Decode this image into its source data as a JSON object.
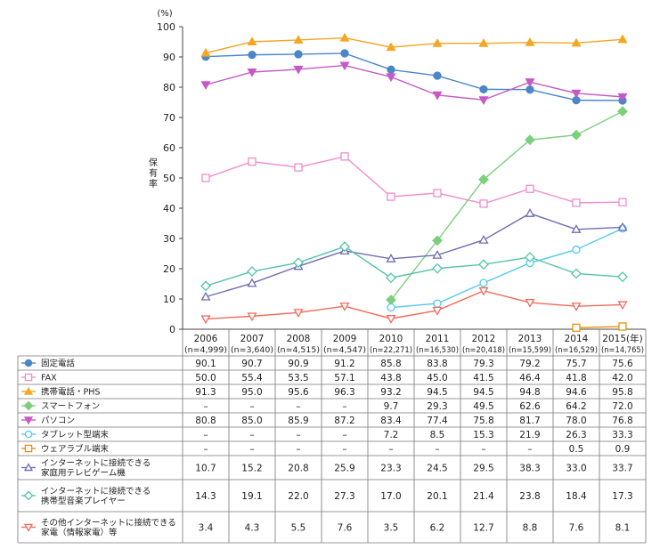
{
  "chart_data": {
    "type": "line",
    "unit_label": "(%)",
    "ylabel": "保有率",
    "ylim": [
      0,
      100
    ],
    "yticks": [
      0,
      10,
      20,
      30,
      40,
      50,
      60,
      70,
      80,
      90,
      100
    ],
    "grid": false,
    "years": [
      "2006",
      "2007",
      "2008",
      "2009",
      "2010",
      "2011",
      "2012",
      "2013",
      "2014",
      "2015(年)"
    ],
    "samples": [
      "(n=4,999)",
      "(n=3,640)",
      "(n=4,515)",
      "(n=4,547)",
      "(n=22,271)",
      "(n=16,530)",
      "(n=20,418)",
      "(n=15,599)",
      "(n=16,529)",
      "(n=14,765)"
    ],
    "series": [
      {
        "name": "固定電話",
        "color": "#4a86c8",
        "marker": "circle",
        "values": [
          90.1,
          90.7,
          90.9,
          91.2,
          85.8,
          83.8,
          79.3,
          79.2,
          75.7,
          75.6
        ],
        "labels": [
          "90.1",
          "90.7",
          "90.9",
          "91.2",
          "85.8",
          "83.8",
          "79.3",
          "79.2",
          "75.7",
          "75.6"
        ]
      },
      {
        "name": "FAX",
        "color": "#f28ccc",
        "marker": "square-open",
        "values": [
          50.0,
          55.4,
          53.5,
          57.1,
          43.8,
          45.0,
          41.5,
          46.4,
          41.8,
          42.0
        ],
        "labels": [
          "50.0",
          "55.4",
          "53.5",
          "57.1",
          "43.8",
          "45.0",
          "41.5",
          "46.4",
          "41.8",
          "42.0"
        ]
      },
      {
        "name": "携帯電話・PHS",
        "color": "#f5a623",
        "marker": "triangle",
        "values": [
          91.3,
          95.0,
          95.6,
          96.3,
          93.2,
          94.5,
          94.5,
          94.8,
          94.6,
          95.8
        ],
        "labels": [
          "91.3",
          "95.0",
          "95.6",
          "96.3",
          "93.2",
          "94.5",
          "94.5",
          "94.8",
          "94.6",
          "95.8"
        ]
      },
      {
        "name": "スマートフォン",
        "color": "#7dcf7d",
        "marker": "diamond",
        "values": [
          null,
          null,
          null,
          null,
          9.7,
          29.3,
          49.5,
          62.6,
          64.2,
          72.0
        ],
        "labels": [
          "–",
          "–",
          "–",
          "–",
          "9.7",
          "29.3",
          "49.5",
          "62.6",
          "64.2",
          "72.0"
        ]
      },
      {
        "name": "パソコン",
        "color": "#c659c6",
        "marker": "triangle-down",
        "values": [
          80.8,
          85.0,
          85.9,
          87.2,
          83.4,
          77.4,
          75.8,
          81.7,
          78.0,
          76.8
        ],
        "labels": [
          "80.8",
          "85.0",
          "85.9",
          "87.2",
          "83.4",
          "77.4",
          "75.8",
          "81.7",
          "78.0",
          "76.8"
        ]
      },
      {
        "name": "タブレット型端末",
        "color": "#52c8f0",
        "marker": "circle-open",
        "values": [
          null,
          null,
          null,
          null,
          7.2,
          8.5,
          15.3,
          21.9,
          26.3,
          33.3
        ],
        "labels": [
          "–",
          "–",
          "–",
          "–",
          "7.2",
          "8.5",
          "15.3",
          "21.9",
          "26.3",
          "33.3"
        ]
      },
      {
        "name": "ウェアラブル端末",
        "color": "#e8920c",
        "marker": "square-open",
        "values": [
          null,
          null,
          null,
          null,
          null,
          null,
          null,
          null,
          0.5,
          0.9
        ],
        "labels": [
          "–",
          "–",
          "–",
          "–",
          "–",
          "–",
          "–",
          "–",
          "0.5",
          "0.9"
        ]
      },
      {
        "name": "インターネットに接続できる 家庭用テレビゲーム機",
        "lines": [
          "インターネットに接続できる",
          "家庭用テレビゲーム機"
        ],
        "color": "#6d6db4",
        "marker": "triangle-open",
        "values": [
          10.7,
          15.2,
          20.8,
          25.9,
          23.3,
          24.5,
          29.5,
          38.3,
          33.0,
          33.7
        ],
        "labels": [
          "10.7",
          "15.2",
          "20.8",
          "25.9",
          "23.3",
          "24.5",
          "29.5",
          "38.3",
          "33.0",
          "33.7"
        ]
      },
      {
        "name": "インターネットに接続できる 携帯型音楽プレイヤー",
        "lines": [
          "インターネットに接続できる",
          "携帯型音楽プレイヤー"
        ],
        "color": "#52c4a8",
        "marker": "diamond-open",
        "values": [
          14.3,
          19.1,
          22.0,
          27.3,
          17.0,
          20.1,
          21.4,
          23.8,
          18.4,
          17.3
        ],
        "labels": [
          "14.3",
          "19.1",
          "22.0",
          "27.3",
          "17.0",
          "20.1",
          "21.4",
          "23.8",
          "18.4",
          "17.3"
        ]
      },
      {
        "name": "その他インターネットに接続できる 家電（情報家電）等",
        "lines": [
          "その他インターネットに接続できる",
          "家電（情報家電）等"
        ],
        "color": "#f46a5a",
        "marker": "triangle-down-open",
        "values": [
          3.4,
          4.3,
          5.5,
          7.6,
          3.5,
          6.2,
          12.7,
          8.8,
          7.6,
          8.1
        ],
        "labels": [
          "3.4",
          "4.3",
          "5.5",
          "7.6",
          "3.5",
          "6.2",
          "12.7",
          "8.8",
          "7.6",
          "8.1"
        ]
      }
    ]
  }
}
